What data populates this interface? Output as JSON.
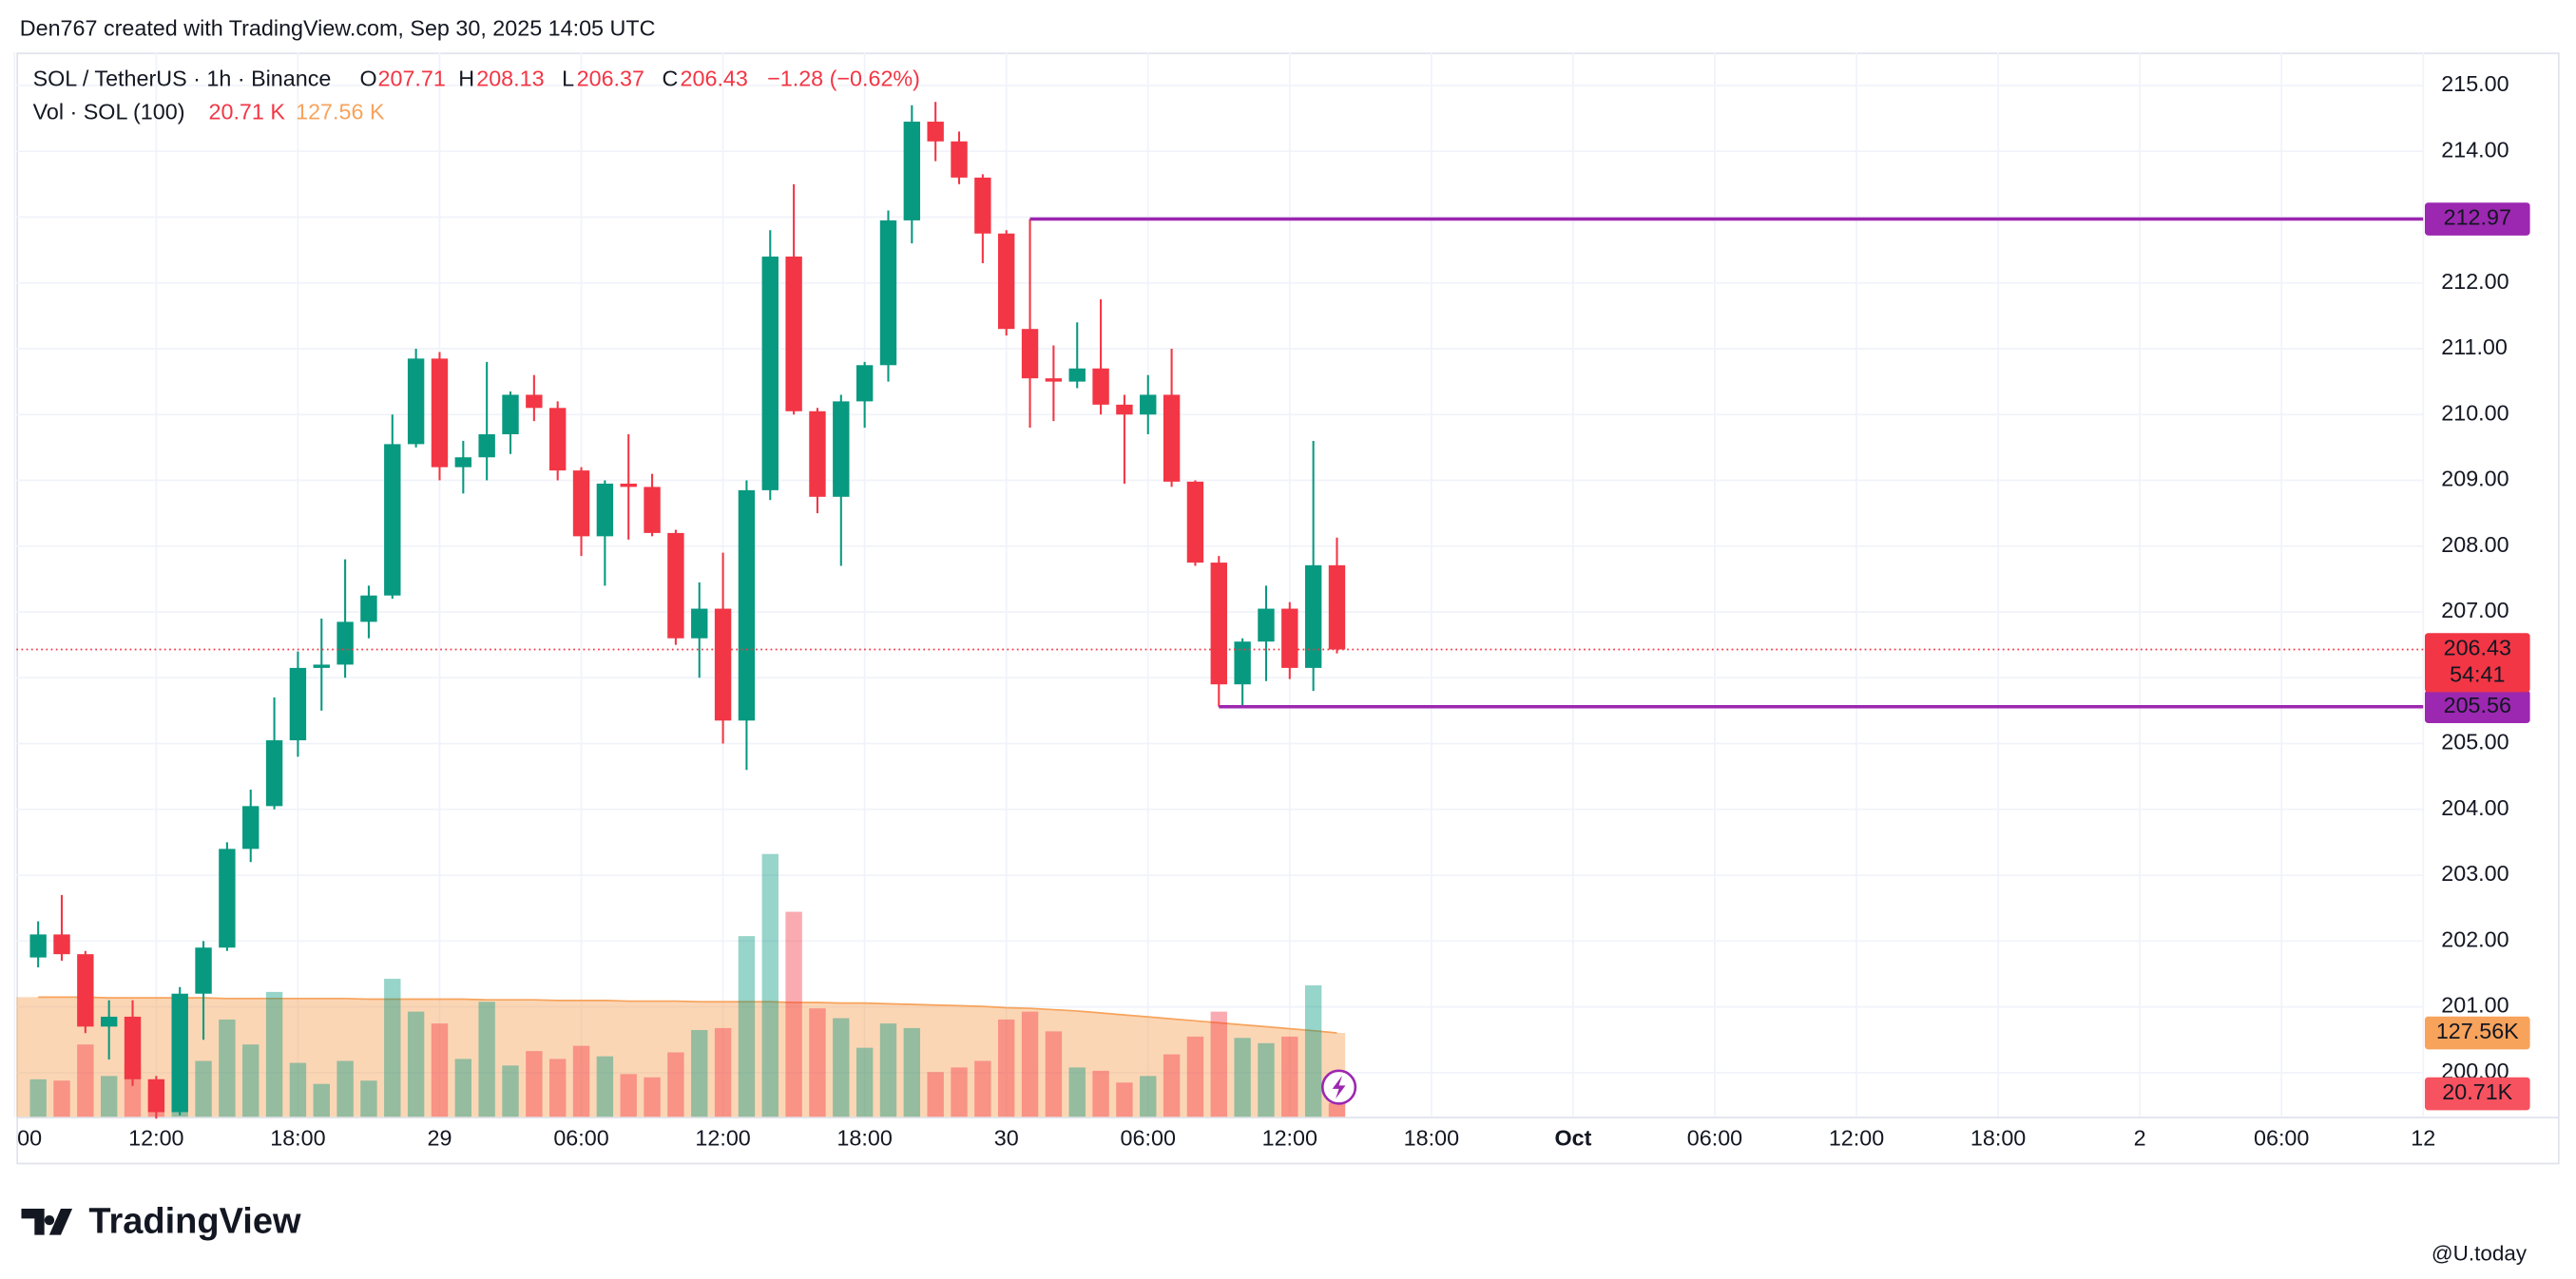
{
  "header": {
    "credit": "Den767 created with TradingView.com, Sep 30, 2025 14:05 UTC"
  },
  "branding": "TradingView",
  "watermark": "@U.today",
  "chart_data": {
    "type": "candlestick",
    "legend": {
      "symbol": "SOL / TetherUS · 1h · Binance",
      "o": "O",
      "h": "H",
      "l": "L",
      "c": "C",
      "change": "−1.28 (−0.62%)",
      "vol_name": "Vol · SOL (100)",
      "vol_value": "20.71 K",
      "vol_ma": "127.56 K"
    },
    "up_color": "#089981",
    "down_color": "#f23645",
    "x": [
      7,
      8,
      9,
      10,
      11,
      12,
      13,
      14,
      15,
      16,
      17,
      18,
      19,
      20,
      21,
      22,
      23,
      24,
      25,
      26,
      27,
      28,
      29,
      30,
      31,
      32,
      33,
      34,
      35,
      36,
      37,
      38,
      39,
      40,
      41,
      42,
      43,
      44,
      45,
      46,
      47,
      48,
      49,
      50,
      51,
      52,
      53,
      54,
      55,
      56,
      57,
      58,
      59,
      60,
      61,
      62
    ],
    "open": [
      201.75,
      202.1,
      201.8,
      200.7,
      200.85,
      199.9,
      199.4,
      201.2,
      201.9,
      203.4,
      204.05,
      205.05,
      206.15,
      206.2,
      206.85,
      207.25,
      209.55,
      210.85,
      209.2,
      209.35,
      209.7,
      210.3,
      210.1,
      209.15,
      208.15,
      208.95,
      208.9,
      208.2,
      206.6,
      207.05,
      205.35,
      208.85,
      212.4,
      210.05,
      208.75,
      210.2,
      210.75,
      212.95,
      214.45,
      214.15,
      213.6,
      212.75,
      211.3,
      210.55,
      210.5,
      210.7,
      210.15,
      210.0,
      210.3,
      208.98,
      207.75,
      205.9,
      206.55,
      207.05,
      206.15,
      207.71
    ],
    "high": [
      202.3,
      202.7,
      201.85,
      201.1,
      201.1,
      199.95,
      201.3,
      202.0,
      203.5,
      204.3,
      205.7,
      206.4,
      206.9,
      207.8,
      207.4,
      210.0,
      211.0,
      210.95,
      209.6,
      210.8,
      210.35,
      210.6,
      210.2,
      209.2,
      209.0,
      209.7,
      209.1,
      208.25,
      207.45,
      207.9,
      209.0,
      212.8,
      213.5,
      210.1,
      210.3,
      210.8,
      213.1,
      214.7,
      214.75,
      214.3,
      213.65,
      212.8,
      212.97,
      211.05,
      211.4,
      211.75,
      210.3,
      210.6,
      211.0,
      209.0,
      207.85,
      206.6,
      207.4,
      207.15,
      209.6,
      208.13
    ],
    "low": [
      201.6,
      201.7,
      200.6,
      200.2,
      199.8,
      199.3,
      199.35,
      200.5,
      201.85,
      203.2,
      204.0,
      204.8,
      205.5,
      206.0,
      206.6,
      207.2,
      209.5,
      209.0,
      208.8,
      209.0,
      209.4,
      209.9,
      209.0,
      207.85,
      207.4,
      208.1,
      208.15,
      206.5,
      206.0,
      205.0,
      204.6,
      208.7,
      210.0,
      208.5,
      207.7,
      209.8,
      210.5,
      212.6,
      213.85,
      213.5,
      212.3,
      211.2,
      209.8,
      209.9,
      210.4,
      210.0,
      208.95,
      209.7,
      208.9,
      207.7,
      205.56,
      205.56,
      205.95,
      205.98,
      205.8,
      206.37
    ],
    "close": [
      202.1,
      201.8,
      200.7,
      200.85,
      199.9,
      199.4,
      201.2,
      201.9,
      203.4,
      204.05,
      205.05,
      206.15,
      206.2,
      206.85,
      207.25,
      209.55,
      210.85,
      209.2,
      209.35,
      209.7,
      210.3,
      210.1,
      209.15,
      208.15,
      208.95,
      208.9,
      208.2,
      206.6,
      207.05,
      205.35,
      208.85,
      212.4,
      210.05,
      208.75,
      210.2,
      210.75,
      212.95,
      214.45,
      214.15,
      213.6,
      212.75,
      211.3,
      210.55,
      210.5,
      210.7,
      210.15,
      210.0,
      210.3,
      208.98,
      207.75,
      205.9,
      206.55,
      207.05,
      206.15,
      207.71,
      206.43
    ],
    "volume": [
      57,
      55,
      110,
      62,
      78,
      45,
      178,
      85,
      148,
      110,
      190,
      82,
      50,
      85,
      55,
      210,
      160,
      142,
      88,
      175,
      78,
      100,
      88,
      108,
      92,
      65,
      60,
      98,
      132,
      135,
      275,
      400,
      312,
      165,
      150,
      105,
      142,
      135,
      68,
      75,
      85,
      148,
      160,
      130,
      75,
      70,
      52,
      62,
      95,
      122,
      160,
      120,
      112,
      122,
      200,
      20.71
    ],
    "ma": [
      182,
      182,
      182,
      181,
      181,
      181,
      181,
      181,
      180,
      180,
      180,
      180,
      180,
      180,
      179,
      179,
      179,
      179,
      179,
      178,
      178,
      178,
      177,
      177,
      177,
      176,
      176,
      176,
      175,
      175,
      175,
      175,
      174,
      174,
      173,
      173,
      172,
      171,
      170,
      169,
      168,
      166,
      165,
      163,
      161,
      158,
      155,
      152,
      149,
      146,
      143,
      140,
      137,
      134,
      131,
      127.56
    ],
    "vol_ylim": [
      0,
      400
    ],
    "vol_badges": [
      "127.56K",
      "20.71K"
    ],
    "ma_color": "#f7a35c",
    "xlim": [
      6.08,
      108
    ],
    "xticks": [
      {
        "value": 6,
        "label": "00"
      },
      {
        "value": 12,
        "label": "12:00"
      },
      {
        "value": 18,
        "label": "18:00"
      },
      {
        "value": 24,
        "label": "29"
      },
      {
        "value": 30,
        "label": "06:00"
      },
      {
        "value": 36,
        "label": "12:00"
      },
      {
        "value": 42,
        "label": "18:00"
      },
      {
        "value": 48,
        "label": "30"
      },
      {
        "value": 54,
        "label": "06:00"
      },
      {
        "value": 60,
        "label": "12:00"
      },
      {
        "value": 66,
        "label": "18:00"
      },
      {
        "value": 72,
        "label": "Oct"
      },
      {
        "value": 78,
        "label": "06:00"
      },
      {
        "value": 84,
        "label": "12:00"
      },
      {
        "value": 90,
        "label": "18:00"
      },
      {
        "value": 96,
        "label": "2"
      },
      {
        "value": 102,
        "label": "06:00"
      },
      {
        "value": 108,
        "label": "12"
      }
    ],
    "ylim": [
      199.33,
      215.5
    ],
    "yticks": [
      {
        "value": 200,
        "label": "200.00"
      },
      {
        "value": 201,
        "label": "201.00"
      },
      {
        "value": 202,
        "label": "202.00"
      },
      {
        "value": 203,
        "label": "203.00"
      },
      {
        "value": 204,
        "label": "204.00"
      },
      {
        "value": 205,
        "label": "205.00"
      },
      {
        "value": 206,
        "label": "206.00"
      },
      {
        "value": 207,
        "label": "207.00"
      },
      {
        "value": 208,
        "label": "208.00"
      },
      {
        "value": 209,
        "label": "209.00"
      },
      {
        "value": 210,
        "label": "210.00"
      },
      {
        "value": 211,
        "label": "211.00"
      },
      {
        "value": 212,
        "label": "212.00"
      },
      {
        "value": 213,
        "label": "213.00"
      },
      {
        "value": 214,
        "label": "214.00"
      },
      {
        "value": 215,
        "label": "215.00"
      }
    ],
    "grid": true,
    "hlines": [
      {
        "value": 212.97,
        "from": 49,
        "color": "#9c27b0"
      },
      {
        "value": 205.56,
        "from": 57,
        "color": "#9c27b0"
      }
    ],
    "countdown": "54:41"
  }
}
